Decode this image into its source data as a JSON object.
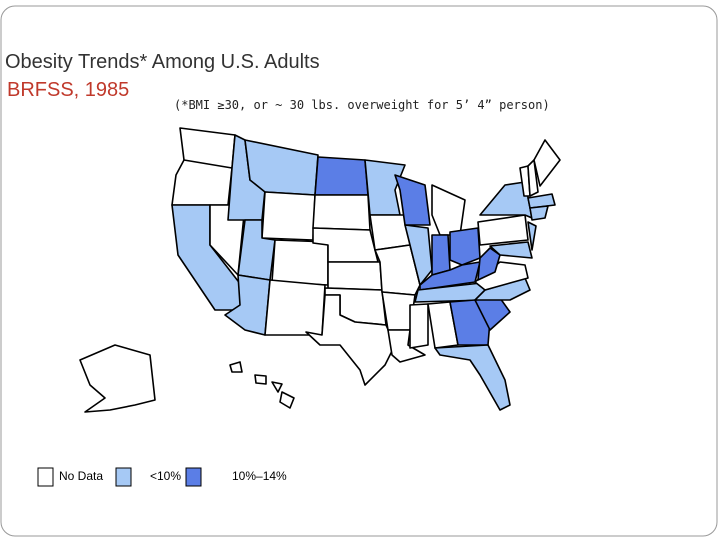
{
  "title": "Obesity Trends* Among U.S. Adults",
  "subtitle": "BRFSS, 1985",
  "note": "(*BMI ≥30, or ~ 30 lbs. overweight for 5’ 4” person)",
  "legend": [
    {
      "label": "No Data",
      "color": "#ffffff"
    },
    {
      "label": "<10%",
      "color": "#a6c9f5"
    },
    {
      "label": "10%–14%",
      "color": "#5b7ee6"
    }
  ]
}
